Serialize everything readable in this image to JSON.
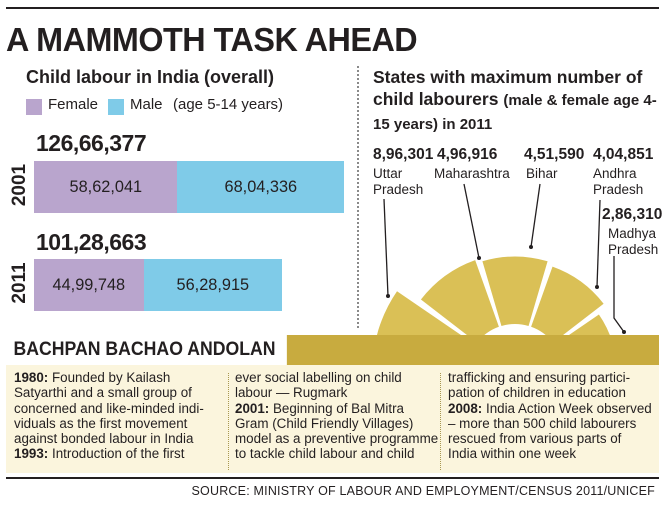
{
  "headline": "A MAMMOTH TASK AHEAD",
  "colors": {
    "female": "#b9a5cd",
    "male": "#7fcbe8",
    "arch": "#dac056",
    "accent": "#c8ab3f",
    "box_bg": "#fbf5dd"
  },
  "chart_data": [
    {
      "type": "bar",
      "title": "Child labour in India (overall)",
      "legend": [
        "Female",
        "Male"
      ],
      "legend_note": "(age 5-14 years)",
      "categories": [
        "2001",
        "2011"
      ],
      "totals": [
        "126,66,377",
        "101,28,663"
      ],
      "total_values": [
        12666377,
        10128663
      ],
      "series": [
        {
          "name": "Female",
          "values": [
            5862041,
            4499748
          ],
          "labels": [
            "58,62,041",
            "44,99,748"
          ]
        },
        {
          "name": "Male",
          "values": [
            6804336,
            5628915
          ],
          "labels": [
            "68,04,336",
            "56,28,915"
          ]
        }
      ]
    },
    {
      "type": "pie",
      "title": "States with maximum number of child labourers",
      "subtitle": "(male & female age 4-15 years) in 2011",
      "categories": [
        "Uttar Pradesh",
        "Maharashtra",
        "Bihar",
        "Andhra Pradesh",
        "Madhya Pradesh"
      ],
      "values": [
        896301,
        496916,
        451590,
        404851,
        286310
      ],
      "value_labels": [
        "8,96,301",
        "4,96,916",
        "4,51,590",
        "4,04,851",
        "2,86,310"
      ],
      "name_lines": [
        [
          "Uttar",
          "Pradesh"
        ],
        [
          "Maharashtra"
        ],
        [
          "Bihar"
        ],
        [
          "Andhra",
          "Pradesh"
        ],
        [
          "Madhya",
          "Pradesh"
        ]
      ]
    }
  ],
  "bba": {
    "title": "BACHPAN BACHAO ANDOLAN",
    "entries": [
      {
        "year": "1980:",
        "text": " Founded by Kailash Satyarthi and a small group of concerned and like-minded individuals as the first movement against bonded labour in India"
      },
      {
        "year": "1993:",
        "text": " Introduction of the first ever social labelling on child labour — Rugmark"
      },
      {
        "year": "2001:",
        "text": " Beginning of Bal Mitra Gram (Child Friendly Villages) model as a preventive programme to tackle child labour and child trafficking and ensuring participation of children in education"
      },
      {
        "year": "2008:",
        "text": " India Action Week observed – more than 500 child labourers rescued from various parts of India within one week"
      }
    ],
    "col1_lines": [
      "Satyarthi and a small group of",
      "concerned and like-minded indi-",
      "viduals as the first movement",
      "against bonded labour in India"
    ],
    "col1_first": " Founded by Kailash",
    "col1_1993": " Introduction of the first",
    "col2_lines": [
      "ever social labelling on child",
      "labour — Rugmark"
    ],
    "col2_2001_first": " Beginning of Bal Mitra",
    "col2_2001_lines": [
      "Gram (Child Friendly Villages)",
      "model as a preventive programme",
      "to tackle child labour and child"
    ],
    "col3_lines": [
      "trafficking and ensuring  partici-",
      "pation of children in education"
    ],
    "col3_2008_first": " India Action Week observed",
    "col3_2008_lines": [
      "– more than 500 child labourers",
      "rescued from various parts of",
      "India within one week"
    ]
  },
  "source": "SOURCE: MINISTRY OF LABOUR AND EMPLOYMENT/CENSUS 2011/UNICEF"
}
